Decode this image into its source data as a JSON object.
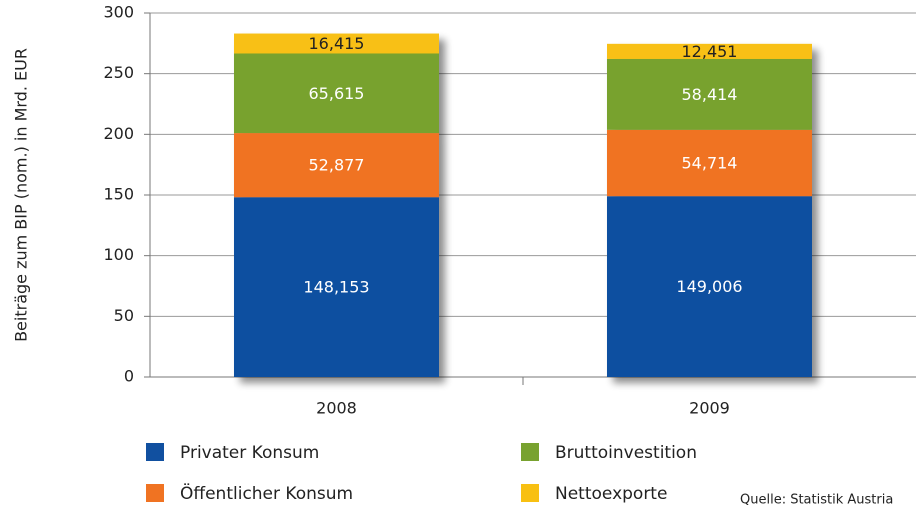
{
  "chart_data": {
    "type": "stacked-bar",
    "y_label": "Beiträge zum BIP (nom.) in Mrd. EUR",
    "categories": [
      "2008",
      "2009"
    ],
    "series": [
      {
        "name": "Privater Konsum",
        "color": "#1150a0",
        "values": [
          148.153,
          149.006
        ],
        "value_labels": [
          "148,153",
          "149,006"
        ]
      },
      {
        "name": "Öffentlicher Konsum",
        "color": "#f07322",
        "values": [
          52.877,
          54.714
        ],
        "value_labels": [
          "52,877",
          "54,714"
        ]
      },
      {
        "name": "Bruttoinvestition",
        "color": "#78a22f",
        "values": [
          65.615,
          58.414
        ],
        "value_labels": [
          "65,615",
          "58,414"
        ]
      },
      {
        "name": "Nettoexporte",
        "color": "#f8c012",
        "values": [
          16.415,
          12.451
        ],
        "value_labels": [
          "16,415",
          "12,451"
        ]
      }
    ],
    "ylim": [
      0,
      300
    ],
    "yticks": [
      0,
      50,
      100,
      150,
      200,
      250,
      300
    ],
    "grid": true,
    "source": "Quelle: Statistik Austria"
  }
}
